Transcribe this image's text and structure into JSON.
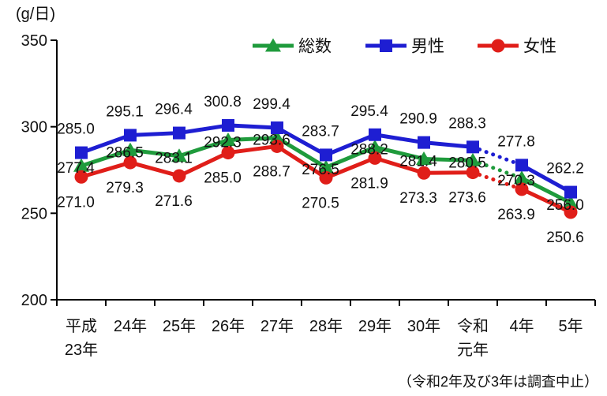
{
  "chart_data": {
    "type": "line",
    "title": "",
    "xlabel": "",
    "ylabel": "(g/日)",
    "ylim": [
      200,
      350
    ],
    "yticks": [
      350,
      300,
      250,
      200
    ],
    "grid": false,
    "legend_position": "top",
    "legend": [
      "総数",
      "男性",
      "女性"
    ],
    "categories": [
      "平成23年",
      "24年",
      "25年",
      "26年",
      "27年",
      "28年",
      "29年",
      "30年",
      "令和元年",
      "4年",
      "5年"
    ],
    "category_label_lines": [
      [
        "平成",
        "23年"
      ],
      [
        "24年"
      ],
      [
        "25年"
      ],
      [
        "26年"
      ],
      [
        "27年"
      ],
      [
        "28年"
      ],
      [
        "29年"
      ],
      [
        "30年"
      ],
      [
        "令和",
        "元年"
      ],
      [
        "4年"
      ],
      [
        "5年"
      ]
    ],
    "series": [
      {
        "name": "総数",
        "marker": "triangle",
        "color": "#1f9b3c",
        "values": [
          277.4,
          286.5,
          283.1,
          292.3,
          293.6,
          276.5,
          288.2,
          281.4,
          280.5,
          270.3,
          256.0
        ]
      },
      {
        "name": "男性",
        "marker": "square",
        "color": "#1e1ed2",
        "values": [
          285.0,
          295.1,
          296.4,
          300.8,
          299.4,
          283.7,
          295.4,
          290.9,
          288.3,
          277.8,
          262.2
        ]
      },
      {
        "name": "女性",
        "marker": "circle",
        "color": "#e01e19",
        "values": [
          271.0,
          279.3,
          271.6,
          285.0,
          288.7,
          270.5,
          281.9,
          273.3,
          273.6,
          263.9,
          250.6
        ]
      }
    ],
    "dotted_segment": {
      "between": [
        "令和元年",
        "4年"
      ]
    },
    "note": "（令和2年及び3年は調査中止）"
  }
}
